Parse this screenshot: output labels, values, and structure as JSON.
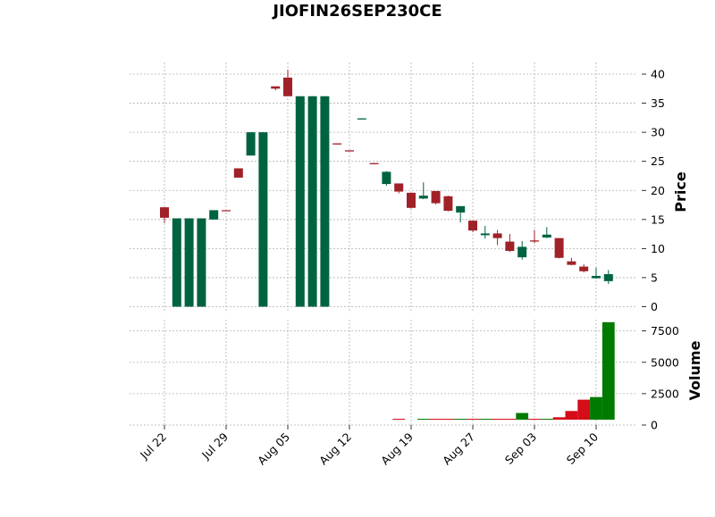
{
  "chart_data": {
    "type": "candlestick",
    "title": "JIOFIN26SEP230CE",
    "price_axis": {
      "label": "Price",
      "ylim": [
        -1,
        42
      ],
      "ticks": [
        0,
        5,
        10,
        15,
        20,
        25,
        30,
        35,
        40
      ]
    },
    "volume_axis": {
      "label": "Volume",
      "ylim": [
        0,
        8400
      ],
      "ticks": [
        0,
        2500,
        5000,
        7500
      ],
      "tick_labels": [
        "0",
        "2500",
        "5000",
        "7500"
      ]
    },
    "x_ticks": [
      {
        "index": 0,
        "label": "Jul 22"
      },
      {
        "index": 5,
        "label": "Jul 29"
      },
      {
        "index": 10,
        "label": "Aug 05"
      },
      {
        "index": 15,
        "label": "Aug 12"
      },
      {
        "index": 20,
        "label": "Aug 19"
      },
      {
        "index": 25,
        "label": "Aug 27"
      },
      {
        "index": 30,
        "label": "Sep 03"
      },
      {
        "index": 35,
        "label": "Sep 10"
      }
    ],
    "grid": true,
    "colors": {
      "up": "#006340",
      "down": "#a02128",
      "vol_up": "#007a00",
      "vol_down": "#d50d18",
      "grid": "#b0b0b0"
    },
    "candles": [
      {
        "date": "Jul 22",
        "open": 17.1,
        "high": 17.1,
        "low": 14.4,
        "close": 15.3,
        "volume": 0
      },
      {
        "date": "Jul 23",
        "open": 0.0,
        "high": 15.2,
        "low": 0.0,
        "close": 15.2,
        "volume": 0
      },
      {
        "date": "Jul 24",
        "open": 0.0,
        "high": 15.2,
        "low": 0.0,
        "close": 15.2,
        "volume": 0
      },
      {
        "date": "Jul 25",
        "open": 0.0,
        "high": 15.2,
        "low": 0.0,
        "close": 15.2,
        "volume": 0
      },
      {
        "date": "Jul 26",
        "open": 15.0,
        "high": 16.6,
        "low": 15.0,
        "close": 16.6,
        "volume": 0
      },
      {
        "date": "Jul 29",
        "open": 16.6,
        "high": 16.6,
        "low": 16.5,
        "close": 16.5,
        "volume": 0
      },
      {
        "date": "Jul 30",
        "open": 23.8,
        "high": 23.8,
        "low": 22.2,
        "close": 22.2,
        "volume": 0
      },
      {
        "date": "Jul 31",
        "open": 26.0,
        "high": 30.0,
        "low": 26.0,
        "close": 30.0,
        "volume": 0
      },
      {
        "date": "Aug 01",
        "open": 0.0,
        "high": 30.0,
        "low": 0.0,
        "close": 30.0,
        "volume": 0
      },
      {
        "date": "Aug 02",
        "open": 37.9,
        "high": 37.9,
        "low": 37.2,
        "close": 37.5,
        "volume": 0
      },
      {
        "date": "Aug 05",
        "open": 39.4,
        "high": 40.8,
        "low": 36.2,
        "close": 36.2,
        "volume": 0
      },
      {
        "date": "Aug 06",
        "open": 0.0,
        "high": 36.2,
        "low": 0.0,
        "close": 36.2,
        "volume": 0
      },
      {
        "date": "Aug 07",
        "open": 0.0,
        "high": 36.2,
        "low": 0.0,
        "close": 36.2,
        "volume": 0
      },
      {
        "date": "Aug 08",
        "open": 0.0,
        "high": 36.2,
        "low": 0.0,
        "close": 36.2,
        "volume": 0
      },
      {
        "date": "Aug 09",
        "open": 28.1,
        "high": 28.1,
        "low": 27.9,
        "close": 27.9,
        "volume": 0
      },
      {
        "date": "Aug 12",
        "open": 26.9,
        "high": 26.9,
        "low": 26.7,
        "close": 26.7,
        "volume": 0
      },
      {
        "date": "Aug 13",
        "open": 32.2,
        "high": 32.4,
        "low": 32.2,
        "close": 32.4,
        "volume": 0
      },
      {
        "date": "Aug 14",
        "open": 24.7,
        "high": 24.7,
        "low": 24.5,
        "close": 24.5,
        "volume": 0
      },
      {
        "date": "Aug 16",
        "open": 21.1,
        "high": 23.3,
        "low": 20.8,
        "close": 23.2,
        "volume": 0
      },
      {
        "date": "Aug 19",
        "open": 21.2,
        "high": 21.2,
        "low": 19.5,
        "close": 19.8,
        "volume": 10
      },
      {
        "date": "Aug 20",
        "open": 19.6,
        "high": 19.6,
        "low": 16.9,
        "close": 17.0,
        "volume": 0
      },
      {
        "date": "Aug 21",
        "open": 18.6,
        "high": 21.4,
        "low": 18.5,
        "close": 19.1,
        "volume": 30
      },
      {
        "date": "Aug 22",
        "open": 19.9,
        "high": 19.9,
        "low": 17.6,
        "close": 17.8,
        "volume": 30
      },
      {
        "date": "Aug 23",
        "open": 19.0,
        "high": 19.1,
        "low": 16.4,
        "close": 16.5,
        "volume": 40
      },
      {
        "date": "Aug 26",
        "open": 16.2,
        "high": 17.3,
        "low": 14.5,
        "close": 17.3,
        "volume": 290
      },
      {
        "date": "Aug 27",
        "open": 14.8,
        "high": 14.8,
        "low": 12.8,
        "close": 13.1,
        "volume": 220
      },
      {
        "date": "Aug 28",
        "open": 12.3,
        "high": 13.9,
        "low": 11.7,
        "close": 12.6,
        "volume": 60
      },
      {
        "date": "Aug 29",
        "open": 12.6,
        "high": 13.2,
        "low": 10.6,
        "close": 11.8,
        "volume": 200
      },
      {
        "date": "Aug 30",
        "open": 11.2,
        "high": 12.5,
        "low": 9.4,
        "close": 9.6,
        "volume": 280
      },
      {
        "date": "Sep 02",
        "open": 8.5,
        "high": 11.3,
        "low": 8.1,
        "close": 10.3,
        "volume": 960
      },
      {
        "date": "Sep 03",
        "open": 11.4,
        "high": 13.2,
        "low": 10.9,
        "close": 11.2,
        "volume": 410
      },
      {
        "date": "Sep 04",
        "open": 11.9,
        "high": 13.7,
        "low": 11.8,
        "close": 12.4,
        "volume": 410
      },
      {
        "date": "Sep 05",
        "open": 11.8,
        "high": 11.8,
        "low": 8.3,
        "close": 8.4,
        "volume": 620
      },
      {
        "date": "Sep 06",
        "open": 7.8,
        "high": 8.4,
        "low": 7.1,
        "close": 7.2,
        "volume": 1120
      },
      {
        "date": "Sep 09",
        "open": 6.9,
        "high": 7.3,
        "low": 5.9,
        "close": 6.1,
        "volume": 2020
      },
      {
        "date": "Sep 10",
        "open": 4.9,
        "high": 6.7,
        "low": 4.8,
        "close": 5.3,
        "volume": 2230
      },
      {
        "date": "Sep 11",
        "open": 4.4,
        "high": 6.3,
        "low": 3.9,
        "close": 5.6,
        "volume": 8200
      }
    ]
  }
}
